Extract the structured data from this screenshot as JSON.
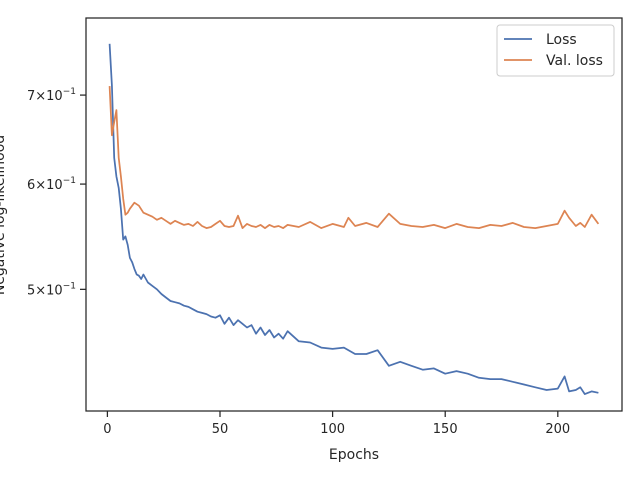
{
  "chart_data": {
    "type": "line",
    "xlabel": "Epochs",
    "ylabel": "Negative log-likelihood",
    "y_scale": "log",
    "xlim": [
      -9.5,
      228.5
    ],
    "ylim": [
      0.405,
      0.8
    ],
    "x_ticks": [
      {
        "value": 0,
        "label": "0"
      },
      {
        "value": 50,
        "label": "50"
      },
      {
        "value": 100,
        "label": "100"
      },
      {
        "value": 150,
        "label": "150"
      },
      {
        "value": 200,
        "label": "200"
      }
    ],
    "y_ticks": [
      {
        "value": 0.5,
        "base": "5",
        "mult": "×",
        "pow": "10",
        "exp": "−1"
      },
      {
        "value": 0.6,
        "base": "6",
        "mult": "×",
        "pow": "10",
        "exp": "−1"
      },
      {
        "value": 0.7,
        "base": "7",
        "mult": "×",
        "pow": "10",
        "exp": "−1"
      }
    ],
    "grid": false,
    "legend_position": "top-right",
    "series": [
      {
        "name": "Loss",
        "color": "#4c72b0",
        "x": [
          1,
          2,
          3,
          4,
          5,
          6,
          7,
          8,
          9,
          10,
          11,
          12,
          13,
          14,
          15,
          16,
          18,
          20,
          22,
          24,
          26,
          28,
          30,
          32,
          34,
          36,
          38,
          40,
          42,
          44,
          46,
          48,
          50,
          52,
          54,
          56,
          58,
          60,
          62,
          64,
          66,
          68,
          70,
          72,
          74,
          76,
          78,
          80,
          85,
          90,
          95,
          100,
          105,
          110,
          115,
          120,
          125,
          130,
          135,
          140,
          145,
          150,
          155,
          160,
          165,
          170,
          175,
          180,
          185,
          190,
          195,
          200,
          203,
          205,
          208,
          210,
          212,
          215,
          218
        ],
        "values": [
          0.765,
          0.712,
          0.628,
          0.608,
          0.596,
          0.575,
          0.545,
          0.548,
          0.54,
          0.528,
          0.524,
          0.518,
          0.513,
          0.512,
          0.509,
          0.513,
          0.506,
          0.503,
          0.5,
          0.496,
          0.493,
          0.49,
          0.489,
          0.488,
          0.486,
          0.485,
          0.483,
          0.481,
          0.48,
          0.479,
          0.477,
          0.476,
          0.478,
          0.471,
          0.476,
          0.47,
          0.474,
          0.471,
          0.468,
          0.47,
          0.463,
          0.468,
          0.462,
          0.466,
          0.46,
          0.463,
          0.459,
          0.465,
          0.457,
          0.456,
          0.452,
          0.451,
          0.452,
          0.447,
          0.447,
          0.45,
          0.438,
          0.441,
          0.438,
          0.435,
          0.436,
          0.432,
          0.434,
          0.432,
          0.429,
          0.428,
          0.428,
          0.426,
          0.424,
          0.422,
          0.42,
          0.421,
          0.43,
          0.419,
          0.42,
          0.422,
          0.417,
          0.419,
          0.418
        ]
      },
      {
        "name": "Val. loss",
        "color": "#dd8452",
        "x": [
          1,
          2,
          3,
          4,
          5,
          6,
          7,
          8,
          9,
          10,
          12,
          14,
          16,
          18,
          20,
          22,
          24,
          26,
          28,
          30,
          32,
          34,
          36,
          38,
          40,
          42,
          44,
          46,
          48,
          50,
          52,
          54,
          56,
          58,
          60,
          62,
          64,
          66,
          68,
          70,
          72,
          74,
          76,
          78,
          80,
          85,
          90,
          95,
          100,
          105,
          107,
          110,
          115,
          120,
          125,
          130,
          135,
          140,
          145,
          150,
          155,
          160,
          165,
          170,
          175,
          180,
          185,
          190,
          195,
          200,
          203,
          205,
          208,
          210,
          212,
          215,
          218
        ],
        "values": [
          0.711,
          0.653,
          0.668,
          0.682,
          0.628,
          0.608,
          0.585,
          0.569,
          0.571,
          0.575,
          0.581,
          0.578,
          0.571,
          0.569,
          0.567,
          0.564,
          0.566,
          0.563,
          0.56,
          0.563,
          0.561,
          0.559,
          0.56,
          0.558,
          0.562,
          0.558,
          0.556,
          0.557,
          0.56,
          0.563,
          0.558,
          0.557,
          0.558,
          0.568,
          0.556,
          0.56,
          0.558,
          0.557,
          0.559,
          0.556,
          0.559,
          0.557,
          0.558,
          0.556,
          0.559,
          0.557,
          0.562,
          0.556,
          0.56,
          0.557,
          0.566,
          0.558,
          0.561,
          0.557,
          0.57,
          0.56,
          0.558,
          0.557,
          0.559,
          0.556,
          0.56,
          0.557,
          0.556,
          0.559,
          0.558,
          0.561,
          0.557,
          0.556,
          0.558,
          0.56,
          0.573,
          0.566,
          0.558,
          0.561,
          0.557,
          0.569,
          0.56
        ]
      }
    ]
  }
}
